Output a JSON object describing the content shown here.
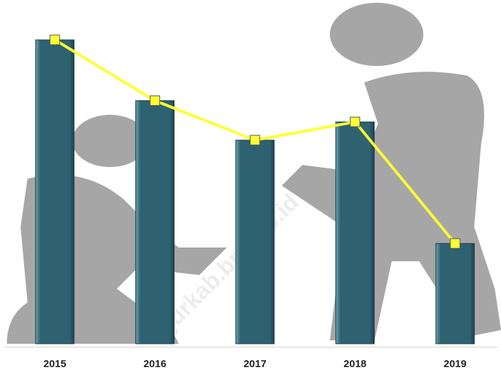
{
  "chart_data": {
    "type": "bar",
    "categories": [
      "2015",
      "2016",
      "2017",
      "2018",
      "2019"
    ],
    "series": [
      {
        "type": "bar",
        "color": "#2e6271",
        "values": [
          100,
          80,
          67,
          73,
          33
        ]
      },
      {
        "type": "line",
        "color": "#ffff33",
        "values": [
          100,
          80,
          67,
          73,
          33
        ]
      }
    ],
    "ylim": [
      0,
      100
    ],
    "watermark": "njurkab.bps.go.id"
  }
}
